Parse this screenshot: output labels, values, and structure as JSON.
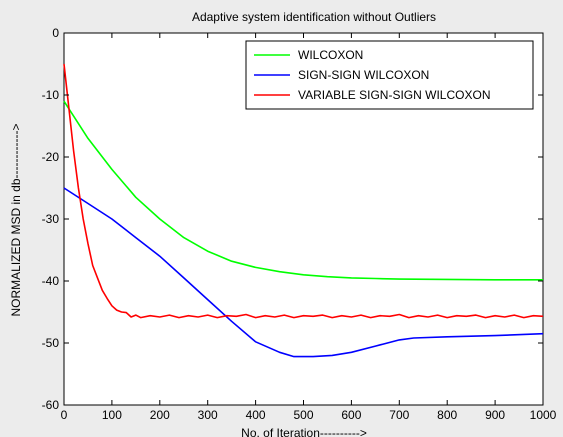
{
  "chart_data": {
    "type": "line",
    "title": "Adaptive system identification without Outliers",
    "xlabel": "No. of Iteration---------->",
    "ylabel": "NORMALIZED MSD in db------------>",
    "xlim": [
      0,
      1000
    ],
    "ylim": [
      -60,
      0
    ],
    "xticks": [
      0,
      100,
      200,
      300,
      400,
      500,
      600,
      700,
      800,
      900,
      1000
    ],
    "yticks": [
      0,
      -10,
      -20,
      -30,
      -40,
      -50,
      -60
    ],
    "grid": false,
    "legend_position": "top-right",
    "series": [
      {
        "name": "WILCOXON",
        "color": "#00ff00",
        "x": [
          0,
          25,
          50,
          100,
          150,
          200,
          250,
          300,
          350,
          400,
          450,
          500,
          550,
          600,
          650,
          700,
          800,
          900,
          1000
        ],
        "y": [
          -11,
          -14,
          -17,
          -22,
          -26.5,
          -30,
          -33,
          -35.2,
          -36.8,
          -37.8,
          -38.5,
          -39,
          -39.3,
          -39.5,
          -39.6,
          -39.7,
          -39.75,
          -39.8,
          -39.8
        ]
      },
      {
        "name": "SIGN-SIGN WILCOXON",
        "color": "#0000ff",
        "x": [
          0,
          50,
          100,
          150,
          200,
          250,
          300,
          350,
          400,
          450,
          480,
          520,
          560,
          600,
          650,
          700,
          730,
          800,
          900,
          1000
        ],
        "y": [
          -25,
          -27.5,
          -30,
          -33,
          -36,
          -39.5,
          -43,
          -46.5,
          -49.8,
          -51.5,
          -52.2,
          -52.2,
          -52,
          -51.5,
          -50.5,
          -49.5,
          -49.2,
          -49,
          -48.8,
          -48.5
        ]
      },
      {
        "name": "VARIABLE SIGN-SIGN WILCOXON",
        "color": "#ff0000",
        "x": [
          0,
          10,
          20,
          30,
          40,
          50,
          60,
          70,
          80,
          90,
          100,
          110,
          120,
          130,
          140,
          150,
          160,
          180,
          200,
          220,
          240,
          260,
          280,
          300,
          320,
          340,
          360,
          380,
          400,
          420,
          440,
          460,
          480,
          500,
          520,
          540,
          560,
          580,
          600,
          620,
          640,
          660,
          680,
          700,
          720,
          740,
          760,
          780,
          800,
          820,
          840,
          860,
          880,
          900,
          920,
          940,
          960,
          980,
          1000
        ],
        "y": [
          -5,
          -12,
          -19,
          -25,
          -30,
          -34,
          -37.5,
          -39.5,
          -41.5,
          -42.8,
          -44,
          -44.7,
          -45,
          -45.1,
          -45.8,
          -45.5,
          -45.9,
          -45.6,
          -45.8,
          -45.5,
          -45.9,
          -45.6,
          -45.8,
          -45.5,
          -45.9,
          -45.6,
          -45.7,
          -45.4,
          -45.9,
          -45.6,
          -45.8,
          -45.5,
          -45.9,
          -45.6,
          -45.7,
          -45.5,
          -45.9,
          -45.6,
          -45.8,
          -45.5,
          -45.9,
          -45.6,
          -45.7,
          -45.4,
          -45.9,
          -45.6,
          -45.8,
          -45.5,
          -45.9,
          -45.6,
          -45.7,
          -45.5,
          -45.9,
          -45.6,
          -45.8,
          -45.5,
          -45.9,
          -45.6,
          -45.7
        ]
      }
    ]
  }
}
